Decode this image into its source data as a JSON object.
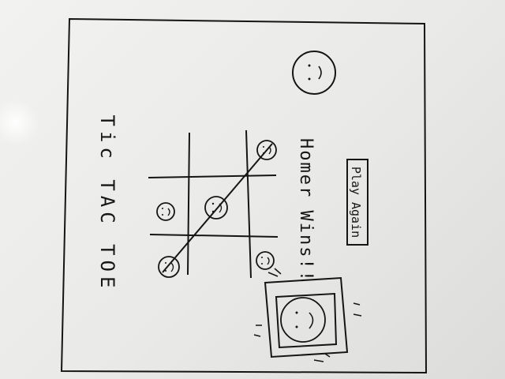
{
  "app": {
    "title": "Tic TAC TOE",
    "status_message": "Homer Wins!!",
    "play_again_label": "Play Again"
  },
  "board": {
    "cells": [
      [
        "",
        "",
        "smiley"
      ],
      [
        "smiley",
        "smiley",
        ""
      ],
      [
        "smiley",
        "",
        "smiley"
      ]
    ],
    "winning_line": "diagonal"
  },
  "colors": {
    "ink": "#151515",
    "board_background": "#eeeeec"
  },
  "icons": {
    "player_avatar": "smiley-face-icon",
    "winner_portrait": "framed-smiley-portrait-icon"
  }
}
